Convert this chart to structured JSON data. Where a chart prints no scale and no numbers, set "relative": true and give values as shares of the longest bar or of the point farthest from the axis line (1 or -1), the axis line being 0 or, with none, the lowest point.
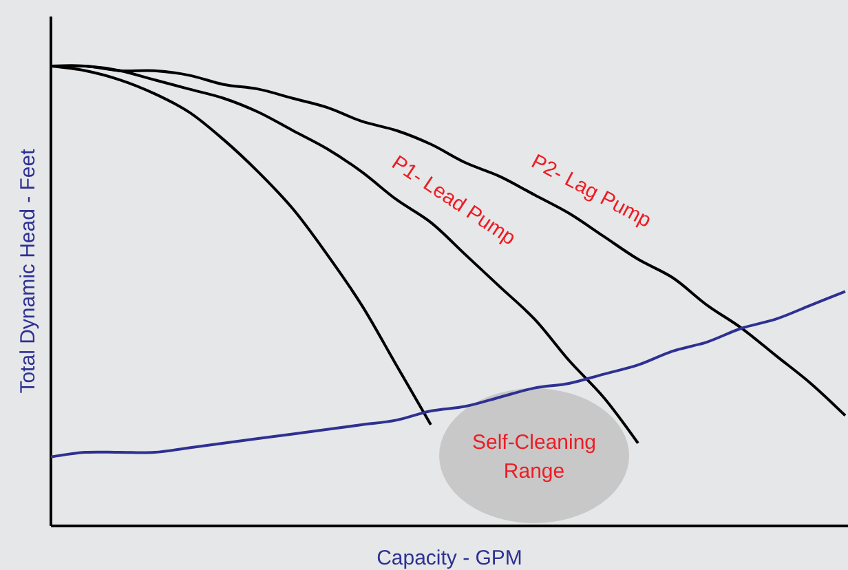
{
  "chart_data": {
    "type": "line",
    "relative": true,
    "xlabel": "Capacity - GPM",
    "ylabel": "Total Dynamic Head - Feet",
    "categories": [
      null,
      null,
      null,
      null,
      null,
      null,
      null,
      null,
      null,
      null,
      null,
      null,
      null,
      null,
      null,
      null,
      null,
      null,
      null,
      null,
      null,
      null,
      null,
      null
    ],
    "series": [
      {
        "color": "#000000",
        "values": [
          1.0,
          0.99,
          0.97,
          0.94,
          0.9,
          0.84,
          0.77,
          0.69,
          0.59,
          0.48,
          0.35,
          0.22,
          null,
          null,
          null,
          null,
          null,
          null,
          null,
          null,
          null,
          null,
          null,
          null
        ]
      },
      {
        "name": "P1- Lead Pump",
        "color": "#000000",
        "values": [
          1.0,
          1.0,
          0.99,
          0.97,
          0.95,
          0.93,
          0.9,
          0.86,
          0.82,
          0.77,
          0.71,
          0.66,
          0.59,
          0.52,
          0.45,
          0.36,
          0.28,
          0.18,
          null,
          null,
          null,
          null,
          null,
          null
        ]
      },
      {
        "name": "P2- Lag Pump",
        "color": "#000000",
        "values": [
          1.0,
          1.0,
          0.99,
          0.99,
          0.98,
          0.96,
          0.95,
          0.93,
          0.91,
          0.88,
          0.86,
          0.83,
          0.79,
          0.76,
          0.72,
          0.68,
          0.63,
          0.58,
          0.54,
          0.48,
          0.43,
          0.37,
          0.31,
          0.24
        ]
      },
      {
        "color": "#2e3192",
        "values": [
          0.15,
          0.16,
          0.16,
          0.16,
          0.17,
          0.18,
          0.19,
          0.2,
          0.21,
          0.22,
          0.23,
          0.25,
          0.26,
          0.28,
          0.3,
          0.31,
          0.33,
          0.35,
          0.38,
          0.4,
          0.43,
          0.45,
          0.48,
          0.51
        ]
      }
    ],
    "annotations": [
      "Self-Cleaning Range"
    ]
  }
}
